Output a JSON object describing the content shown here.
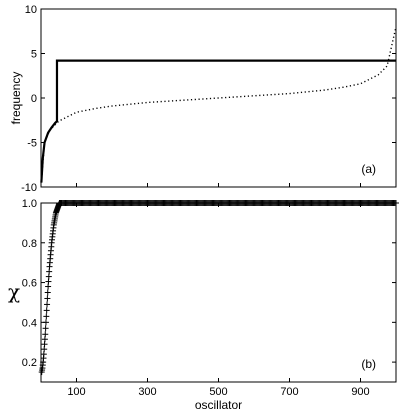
{
  "chart_data": [
    {
      "type": "line",
      "panel_label": "(a)",
      "xlabel": "",
      "ylabel": "frequency",
      "xlim": [
        0,
        1000
      ],
      "ylim": [
        -10,
        10
      ],
      "yticks": [
        -10,
        -5,
        0,
        5,
        10
      ],
      "series": [
        {
          "style": "solid",
          "description_values": "locked frequency",
          "x": [
            1,
            5,
            10,
            20,
            30,
            40,
            45,
            45,
            1000
          ],
          "y": [
            -9.5,
            -6.8,
            -5.0,
            -3.9,
            -3.3,
            -2.8,
            -2.6,
            4.2,
            4.2
          ]
        },
        {
          "style": "dotted",
          "x": [
            1,
            10,
            25,
            50,
            100,
            150,
            200,
            300,
            400,
            500,
            600,
            700,
            800,
            850,
            900,
            950,
            975,
            1000
          ],
          "y": [
            -9.5,
            -5.0,
            -3.6,
            -2.6,
            -1.6,
            -1.2,
            -0.9,
            -0.5,
            -0.25,
            0.0,
            0.25,
            0.5,
            0.9,
            1.2,
            1.6,
            2.6,
            3.6,
            8.0
          ]
        }
      ]
    },
    {
      "type": "scatter",
      "panel_label": "(b)",
      "xlabel": "oscillator",
      "ylabel": "χ",
      "xlim": [
        0,
        1000
      ],
      "ylim": [
        0.1,
        1.0
      ],
      "xticks": [
        100,
        300,
        500,
        700,
        900
      ],
      "yticks": [
        0.2,
        0.4,
        0.6,
        0.8,
        1.0
      ],
      "marker": "+",
      "series": [
        {
          "x": [
            2,
            4,
            6,
            8,
            10,
            12,
            14,
            16,
            18,
            20,
            22,
            24,
            26,
            28,
            30,
            32,
            34,
            36,
            38,
            40,
            42,
            44,
            46,
            48,
            50,
            52,
            54,
            56,
            58,
            60,
            1000
          ],
          "y": [
            0.15,
            0.17,
            0.2,
            0.24,
            0.29,
            0.34,
            0.4,
            0.46,
            0.52,
            0.58,
            0.63,
            0.68,
            0.72,
            0.76,
            0.8,
            0.83,
            0.86,
            0.89,
            0.91,
            0.93,
            0.95,
            0.96,
            0.97,
            0.98,
            0.99,
            1.0,
            1.0,
            1.0,
            1.0,
            1.0,
            1.0
          ]
        }
      ]
    }
  ]
}
